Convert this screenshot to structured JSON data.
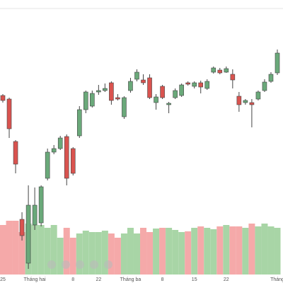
{
  "chart_data": {
    "type": "candlestick",
    "categories": [
      "25",
      null,
      null,
      null,
      null,
      "Tháng hai",
      null,
      null,
      null,
      null,
      null,
      "8",
      null,
      null,
      null,
      "22",
      null,
      null,
      null,
      null,
      "Tháng ba",
      null,
      null,
      null,
      null,
      "8",
      null,
      null,
      null,
      null,
      "15",
      null,
      null,
      null,
      null,
      "22",
      null,
      null,
      null,
      null,
      null,
      null,
      null,
      "Tháng"
    ],
    "open": [
      253,
      248,
      188,
      78,
      16,
      70,
      73,
      136,
      173,
      178,
      195,
      178,
      196,
      233,
      238,
      258,
      260,
      271,
      250,
      223,
      260,
      276,
      275,
      278,
      243,
      266,
      240,
      250,
      253,
      271,
      266,
      271,
      263,
      286,
      289,
      286,
      283,
      252,
      243,
      243,
      248,
      260,
      273,
      285
    ],
    "close": [
      246,
      206,
      156,
      55,
      98,
      98,
      124,
      173,
      178,
      193,
      136,
      143,
      233,
      258,
      256,
      260,
      263,
      246,
      248,
      250,
      273,
      286,
      271,
      250,
      251,
      250,
      242,
      260,
      268,
      269,
      271,
      265,
      273,
      292,
      285,
      291,
      275,
      240,
      246,
      240,
      258,
      272,
      283,
      313
    ],
    "high": [
      255,
      250,
      190,
      88,
      126,
      123,
      126,
      178,
      183,
      196,
      198,
      180,
      238,
      260,
      260,
      268,
      270,
      273,
      255,
      252,
      278,
      290,
      283,
      283,
      255,
      268,
      244,
      263,
      270,
      273,
      273,
      274,
      276,
      294,
      292,
      294,
      290,
      258,
      248,
      248,
      260,
      276,
      286,
      318
    ],
    "low": [
      243,
      193,
      143,
      48,
      8,
      63,
      68,
      133,
      170,
      176,
      126,
      140,
      193,
      228,
      236,
      254,
      258,
      240,
      246,
      220,
      257,
      273,
      268,
      248,
      233,
      248,
      228,
      248,
      251,
      267,
      263,
      256,
      261,
      284,
      283,
      285,
      263,
      230,
      240,
      208,
      246,
      258,
      271,
      282
    ],
    "volume": [
      70,
      76,
      76,
      60,
      72,
      70,
      70,
      66,
      70,
      52,
      66,
      52,
      58,
      62,
      60,
      60,
      62,
      58,
      52,
      58,
      66,
      58,
      66,
      60,
      65,
      66,
      66,
      63,
      60,
      61,
      66,
      68,
      66,
      64,
      68,
      70,
      68,
      68,
      66,
      72,
      68,
      72,
      68,
      66
    ],
    "ylim": [
      0,
      388
    ],
    "y2lim": [
      0,
      388
    ],
    "up_color": "#6aa97a",
    "down_color": "#d9534f",
    "up_volume_color": "#a8d5a6",
    "down_volume_color": "#f5a9a9"
  }
}
